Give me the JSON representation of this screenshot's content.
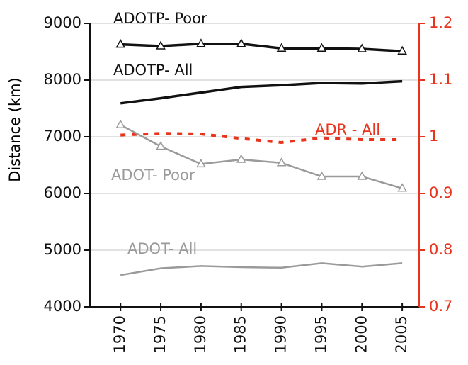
{
  "chart_data": {
    "type": "line",
    "y_label": "Distance (km)",
    "x": [
      1970,
      1975,
      1980,
      1985,
      1990,
      1995,
      2000,
      2005
    ],
    "xlim": [
      1966.2,
      2007.1
    ],
    "xticks": [
      1970,
      1975,
      1980,
      1985,
      1990,
      1995,
      2000,
      2005
    ],
    "ylim": [
      4000,
      9000
    ],
    "yticks": [
      4000,
      5000,
      6000,
      7000,
      8000,
      9000
    ],
    "y2lim": [
      0.7,
      1.2
    ],
    "y2ticks": [
      0.7,
      0.8,
      0.9,
      1,
      1.1,
      1.2
    ],
    "y2color": "#e8341c",
    "grid": true,
    "series": [
      {
        "name": "ADOTP- Poor",
        "color": "#111111",
        "marker": "triangle",
        "values": [
          8630,
          8600,
          8640,
          8640,
          8560,
          8560,
          8550,
          8510
        ]
      },
      {
        "name": "ADOTP- All",
        "color": "#111111",
        "values": [
          7590,
          7680,
          7780,
          7880,
          7910,
          7950,
          7940,
          7980
        ]
      },
      {
        "name": "ADR - All",
        "color": "#e8341c",
        "dashed": true,
        "axis": "y2",
        "values": [
          1.003,
          1.006,
          1.005,
          0.997,
          0.99,
          0.998,
          0.995,
          0.995
        ]
      },
      {
        "name": "ADOT- Poor",
        "color": "#9a9a9a",
        "marker": "triangle",
        "values": [
          7210,
          6830,
          6520,
          6600,
          6540,
          6300,
          6300,
          6090
        ]
      },
      {
        "name": "ADOT- All",
        "color": "#9a9a9a",
        "values": [
          4560,
          4680,
          4720,
          4700,
          4690,
          4770,
          4710,
          4770
        ]
      }
    ]
  }
}
